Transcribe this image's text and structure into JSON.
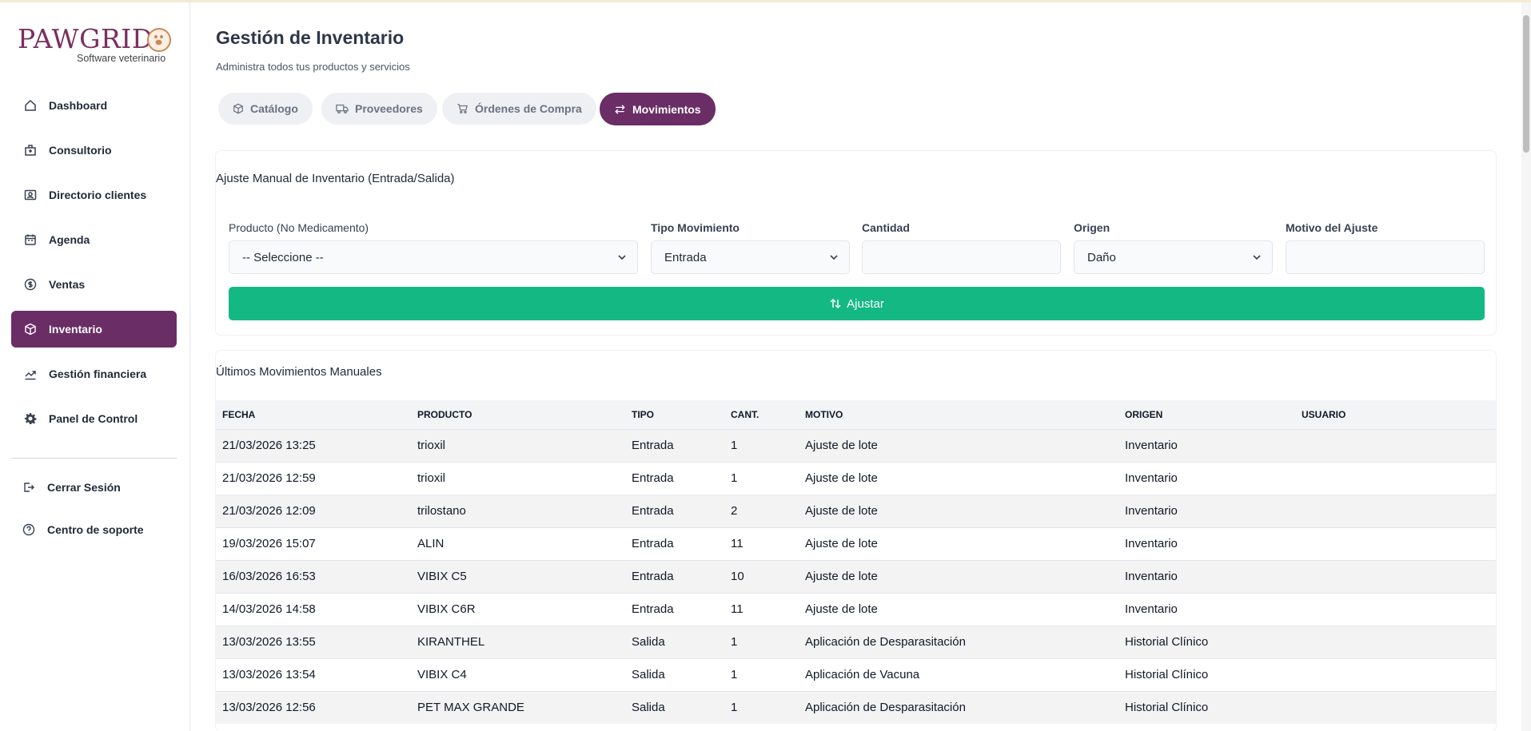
{
  "brand": {
    "name": "PAWGRID",
    "tagline": "Software veterinario",
    "accent": "#6b2d66"
  },
  "sidebar": {
    "items": [
      {
        "label": "Dashboard",
        "icon": "home-icon"
      },
      {
        "label": "Consultorio",
        "icon": "hospital-icon"
      },
      {
        "label": "Directorio clientes",
        "icon": "contact-card-icon"
      },
      {
        "label": "Agenda",
        "icon": "calendar-icon"
      },
      {
        "label": "Ventas",
        "icon": "coin-icon"
      },
      {
        "label": "Inventario",
        "icon": "box-icon",
        "active": true
      },
      {
        "label": "Gestión financiera",
        "icon": "chart-icon"
      },
      {
        "label": "Panel de Control",
        "icon": "gear-icon"
      }
    ],
    "footer": [
      {
        "label": "Cerrar Sesión",
        "icon": "logout-icon"
      },
      {
        "label": "Centro de soporte",
        "icon": "help-circle-icon"
      }
    ]
  },
  "header": {
    "title": "Gestión de Inventario",
    "subtitle": "Administra todos tus productos y servicios"
  },
  "tabs": [
    {
      "label": "Catálogo",
      "icon": "box-icon"
    },
    {
      "label": "Proveedores",
      "icon": "truck-icon"
    },
    {
      "label": "Órdenes de Compra",
      "icon": "cart-icon"
    },
    {
      "label": "Movimientos",
      "icon": "swap-icon",
      "active": true
    }
  ],
  "adjust_form": {
    "title": "Ajuste Manual de Inventario (Entrada/Salida)",
    "product_label": "Producto (No Medicamento)",
    "product_value": "-- Seleccione --",
    "type_label": "Tipo Movimiento",
    "type_value": "Entrada",
    "qty_label": "Cantidad",
    "qty_value": "",
    "origin_label": "Origen",
    "origin_value": "Daño",
    "reason_label": "Motivo del Ajuste",
    "reason_value": "",
    "submit_label": "Ajustar",
    "submit_color": "#13b883"
  },
  "movements": {
    "title": "Últimos Movimientos Manuales",
    "headers": [
      "FECHA",
      "PRODUCTO",
      "TIPO",
      "CANT.",
      "MOTIVO",
      "ORIGEN",
      "USUARIO"
    ],
    "rows": [
      [
        "21/03/2026 13:25",
        "trioxil",
        "Entrada",
        "1",
        "Ajuste de lote",
        "Inventario",
        ""
      ],
      [
        "21/03/2026 12:59",
        "trioxil",
        "Entrada",
        "1",
        "Ajuste de lote",
        "Inventario",
        ""
      ],
      [
        "21/03/2026 12:09",
        "trilostano",
        "Entrada",
        "2",
        "Ajuste de lote",
        "Inventario",
        ""
      ],
      [
        "19/03/2026 15:07",
        "ALIN",
        "Entrada",
        "11",
        "Ajuste de lote",
        "Inventario",
        ""
      ],
      [
        "16/03/2026 16:53",
        "VIBIX C5",
        "Entrada",
        "10",
        "Ajuste de lote",
        "Inventario",
        ""
      ],
      [
        "14/03/2026 14:58",
        "VIBIX C6R",
        "Entrada",
        "11",
        "Ajuste de lote",
        "Inventario",
        ""
      ],
      [
        "13/03/2026 13:55",
        "KIRANTHEL",
        "Salida",
        "1",
        "Aplicación de Desparasitación",
        "Historial Clínico",
        ""
      ],
      [
        "13/03/2026 13:54",
        "VIBIX C4",
        "Salida",
        "1",
        "Aplicación de Vacuna",
        "Historial Clínico",
        ""
      ],
      [
        "13/03/2026 12:56",
        "PET MAX GRANDE",
        "Salida",
        "1",
        "Aplicación de Desparasitación",
        "Historial Clínico",
        ""
      ]
    ]
  }
}
